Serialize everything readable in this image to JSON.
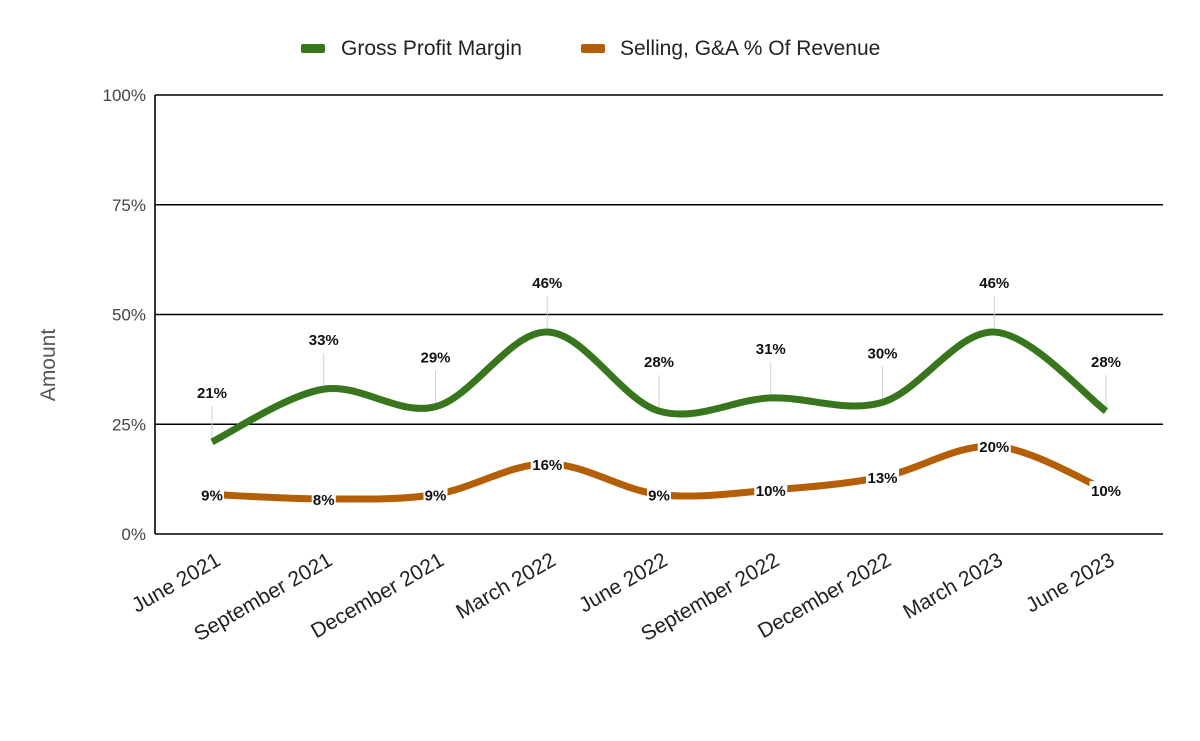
{
  "chart_data": {
    "type": "line",
    "title": "",
    "xlabel": "",
    "ylabel": "Amount",
    "ylim": [
      0,
      100
    ],
    "yticks": [
      "0%",
      "25%",
      "50%",
      "75%",
      "100%"
    ],
    "ytick_values": [
      0,
      25,
      50,
      75,
      100
    ],
    "categories": [
      "June 2021",
      "September 2021",
      "December 2021",
      "March 2022",
      "June 2022",
      "September 2022",
      "December 2022",
      "March 2023",
      "June 2023"
    ],
    "legend_position": "top-center",
    "grid": true,
    "series": [
      {
        "name": "Gross Profit Margin",
        "color": "#38761d",
        "values": [
          21,
          33,
          29,
          46,
          28,
          31,
          30,
          46,
          28
        ],
        "labels": [
          "21%",
          "33%",
          "29%",
          "46%",
          "28%",
          "31%",
          "30%",
          "46%",
          "28%"
        ]
      },
      {
        "name": "Selling, G&A % Of Revenue",
        "color": "#b45f06",
        "values": [
          9,
          8,
          9,
          16,
          9,
          10,
          13,
          20,
          10
        ],
        "labels": [
          "9%",
          "8%",
          "9%",
          "16%",
          "9%",
          "10%",
          "13%",
          "20%",
          "10%"
        ]
      }
    ]
  }
}
